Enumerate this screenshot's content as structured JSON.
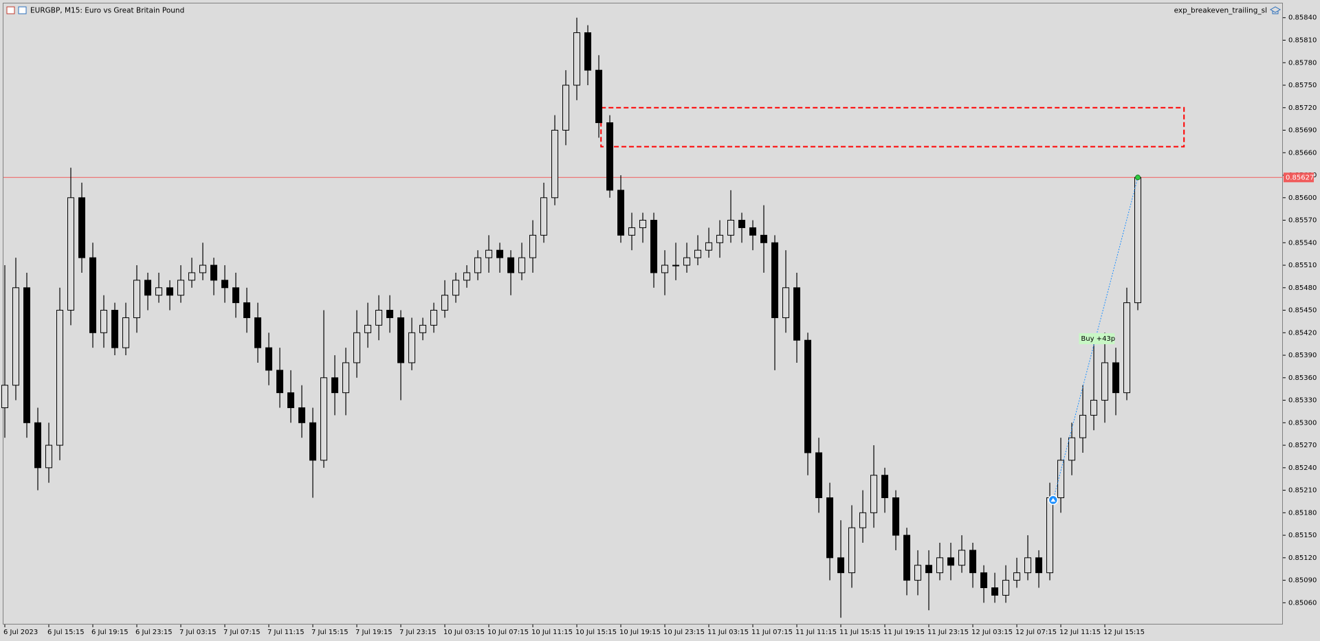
{
  "chart_data": {
    "type": "candlestick",
    "title": "EURGBP, M15:  Euro vs Great Britain Pound",
    "indicator": "exp_breakeven_trailing_sl",
    "ylim": [
      0.85031,
      0.85859
    ],
    "yticks": [
      {
        "value": 0.8506,
        "label": "0.85060"
      },
      {
        "value": 0.8509,
        "label": "0.85090"
      },
      {
        "value": 0.8512,
        "label": "0.85120"
      },
      {
        "value": 0.8515,
        "label": "0.85150"
      },
      {
        "value": 0.8518,
        "label": "0.85180"
      },
      {
        "value": 0.8521,
        "label": "0.85210"
      },
      {
        "value": 0.8524,
        "label": "0.85240"
      },
      {
        "value": 0.8527,
        "label": "0.85270"
      },
      {
        "value": 0.853,
        "label": "0.85300"
      },
      {
        "value": 0.8533,
        "label": "0.85330"
      },
      {
        "value": 0.8536,
        "label": "0.85360"
      },
      {
        "value": 0.8539,
        "label": "0.85390"
      },
      {
        "value": 0.8542,
        "label": "0.85420"
      },
      {
        "value": 0.8545,
        "label": "0.85450"
      },
      {
        "value": 0.8548,
        "label": "0.85480"
      },
      {
        "value": 0.8551,
        "label": "0.85510"
      },
      {
        "value": 0.8554,
        "label": "0.85540"
      },
      {
        "value": 0.8557,
        "label": "0.85570"
      },
      {
        "value": 0.856,
        "label": "0.85600"
      },
      {
        "value": 0.8563,
        "label": "0.85630"
      },
      {
        "value": 0.8566,
        "label": "0.85660"
      },
      {
        "value": 0.8569,
        "label": "0.85690"
      },
      {
        "value": 0.8572,
        "label": "0.85720"
      },
      {
        "value": 0.8575,
        "label": "0.85750"
      },
      {
        "value": 0.8578,
        "label": "0.85780"
      },
      {
        "value": 0.8581,
        "label": "0.85810"
      },
      {
        "value": 0.8584,
        "label": "0.85840"
      }
    ],
    "xticks": [
      {
        "value": 0,
        "label": "6 Jul 2023"
      },
      {
        "value": 4,
        "label": "6 Jul 15:15"
      },
      {
        "value": 8,
        "label": "6 Jul 19:15"
      },
      {
        "value": 12,
        "label": "6 Jul 23:15"
      },
      {
        "value": 16,
        "label": "7 Jul 03:15"
      },
      {
        "value": 20,
        "label": "7 Jul 07:15"
      },
      {
        "value": 24,
        "label": "7 Jul 11:15"
      },
      {
        "value": 28,
        "label": "7 Jul 15:15"
      },
      {
        "value": 32,
        "label": "7 Jul 19:15"
      },
      {
        "value": 36,
        "label": "7 Jul 23:15"
      },
      {
        "value": 40,
        "label": "10 Jul 03:15"
      },
      {
        "value": 44,
        "label": "10 Jul 07:15"
      },
      {
        "value": 48,
        "label": "10 Jul 11:15"
      },
      {
        "value": 52,
        "label": "10 Jul 15:15"
      },
      {
        "value": 56,
        "label": "10 Jul 19:15"
      },
      {
        "value": 60,
        "label": "10 Jul 23:15"
      },
      {
        "value": 64,
        "label": "11 Jul 03:15"
      },
      {
        "value": 68,
        "label": "11 Jul 07:15"
      },
      {
        "value": 72,
        "label": "11 Jul 11:15"
      },
      {
        "value": 76,
        "label": "11 Jul 15:15"
      },
      {
        "value": 80,
        "label": "11 Jul 19:15"
      },
      {
        "value": 84,
        "label": "11 Jul 23:15"
      },
      {
        "value": 88,
        "label": "12 Jul 03:15"
      },
      {
        "value": 92,
        "label": "12 Jul 07:15"
      },
      {
        "value": 96,
        "label": "12 Jul 11:15"
      },
      {
        "value": 100,
        "label": "12 Jul 15:15"
      }
    ],
    "candle_color": "#000000",
    "ohlc": [
      [
        0.8532,
        0.8551,
        0.8528,
        0.8535
      ],
      [
        0.8535,
        0.8552,
        0.8533,
        0.8548
      ],
      [
        0.8548,
        0.855,
        0.8528,
        0.853
      ],
      [
        0.853,
        0.8532,
        0.8521,
        0.8524
      ],
      [
        0.8524,
        0.853,
        0.8522,
        0.8527
      ],
      [
        0.8527,
        0.8548,
        0.8525,
        0.8545
      ],
      [
        0.8545,
        0.8564,
        0.8543,
        0.856
      ],
      [
        0.856,
        0.8562,
        0.855,
        0.8552
      ],
      [
        0.8552,
        0.8554,
        0.854,
        0.8542
      ],
      [
        0.8542,
        0.8547,
        0.854,
        0.8545
      ],
      [
        0.8545,
        0.8546,
        0.8539,
        0.854
      ],
      [
        0.854,
        0.8546,
        0.8539,
        0.8544
      ],
      [
        0.8544,
        0.8551,
        0.8542,
        0.8549
      ],
      [
        0.8549,
        0.855,
        0.8545,
        0.8547
      ],
      [
        0.8547,
        0.855,
        0.8546,
        0.8548
      ],
      [
        0.8548,
        0.8549,
        0.8545,
        0.8547
      ],
      [
        0.8547,
        0.8551,
        0.8546,
        0.8549
      ],
      [
        0.8549,
        0.8552,
        0.8548,
        0.855
      ],
      [
        0.855,
        0.8554,
        0.8549,
        0.8551
      ],
      [
        0.8551,
        0.8552,
        0.8547,
        0.8549
      ],
      [
        0.8549,
        0.8551,
        0.8546,
        0.8548
      ],
      [
        0.8548,
        0.855,
        0.8544,
        0.8546
      ],
      [
        0.8546,
        0.8548,
        0.8542,
        0.8544
      ],
      [
        0.8544,
        0.8546,
        0.8538,
        0.854
      ],
      [
        0.854,
        0.8542,
        0.8535,
        0.8537
      ],
      [
        0.8537,
        0.854,
        0.8532,
        0.8534
      ],
      [
        0.8534,
        0.8537,
        0.853,
        0.8532
      ],
      [
        0.8532,
        0.8535,
        0.8528,
        0.853
      ],
      [
        0.853,
        0.8532,
        0.852,
        0.8525
      ],
      [
        0.8525,
        0.8545,
        0.8524,
        0.8536
      ],
      [
        0.8536,
        0.8539,
        0.8531,
        0.8534
      ],
      [
        0.8534,
        0.854,
        0.8531,
        0.8538
      ],
      [
        0.8538,
        0.8545,
        0.8536,
        0.8542
      ],
      [
        0.8542,
        0.8546,
        0.854,
        0.8543
      ],
      [
        0.8543,
        0.8547,
        0.8541,
        0.8545
      ],
      [
        0.8545,
        0.8547,
        0.8542,
        0.8544
      ],
      [
        0.8544,
        0.8545,
        0.8533,
        0.8538
      ],
      [
        0.8538,
        0.8544,
        0.8537,
        0.8542
      ],
      [
        0.8542,
        0.8544,
        0.8541,
        0.8543
      ],
      [
        0.8543,
        0.8546,
        0.8542,
        0.8545
      ],
      [
        0.8545,
        0.8549,
        0.8544,
        0.8547
      ],
      [
        0.8547,
        0.855,
        0.8546,
        0.8549
      ],
      [
        0.8549,
        0.8551,
        0.8548,
        0.855
      ],
      [
        0.855,
        0.8553,
        0.8549,
        0.8552
      ],
      [
        0.8552,
        0.8555,
        0.855,
        0.8553
      ],
      [
        0.8553,
        0.8554,
        0.855,
        0.8552
      ],
      [
        0.8552,
        0.8553,
        0.8547,
        0.855
      ],
      [
        0.855,
        0.8554,
        0.8549,
        0.8552
      ],
      [
        0.8552,
        0.8557,
        0.855,
        0.8555
      ],
      [
        0.8555,
        0.8562,
        0.8554,
        0.856
      ],
      [
        0.856,
        0.8571,
        0.8559,
        0.8569
      ],
      [
        0.8569,
        0.8577,
        0.8567,
        0.8575
      ],
      [
        0.8575,
        0.8584,
        0.8573,
        0.8582
      ],
      [
        0.8582,
        0.8583,
        0.8575,
        0.8577
      ],
      [
        0.8577,
        0.8579,
        0.8568,
        0.857
      ],
      [
        0.857,
        0.8571,
        0.856,
        0.8561
      ],
      [
        0.8561,
        0.8563,
        0.8554,
        0.8555
      ],
      [
        0.8555,
        0.8558,
        0.8553,
        0.8556
      ],
      [
        0.8556,
        0.8558,
        0.8554,
        0.8557
      ],
      [
        0.8557,
        0.8558,
        0.8548,
        0.855
      ],
      [
        0.855,
        0.8553,
        0.8547,
        0.8551
      ],
      [
        0.8551,
        0.8554,
        0.8549,
        0.8551
      ],
      [
        0.8551,
        0.8554,
        0.855,
        0.8552
      ],
      [
        0.8552,
        0.8555,
        0.8551,
        0.8553
      ],
      [
        0.8553,
        0.8556,
        0.8552,
        0.8554
      ],
      [
        0.8554,
        0.8557,
        0.8552,
        0.8555
      ],
      [
        0.8555,
        0.8561,
        0.8554,
        0.8557
      ],
      [
        0.8557,
        0.8558,
        0.8554,
        0.8556
      ],
      [
        0.8556,
        0.8557,
        0.8553,
        0.8555
      ],
      [
        0.8555,
        0.8559,
        0.855,
        0.8554
      ],
      [
        0.8554,
        0.8555,
        0.8537,
        0.8544
      ],
      [
        0.8544,
        0.8553,
        0.8542,
        0.8548
      ],
      [
        0.8548,
        0.855,
        0.8538,
        0.8541
      ],
      [
        0.8541,
        0.8542,
        0.8523,
        0.8526
      ],
      [
        0.8526,
        0.8528,
        0.8518,
        0.852
      ],
      [
        0.852,
        0.8522,
        0.8509,
        0.8512
      ],
      [
        0.8512,
        0.8517,
        0.8504,
        0.851
      ],
      [
        0.851,
        0.8519,
        0.8508,
        0.8516
      ],
      [
        0.8516,
        0.8521,
        0.8514,
        0.8518
      ],
      [
        0.8518,
        0.8527,
        0.8516,
        0.8523
      ],
      [
        0.8523,
        0.8524,
        0.8518,
        0.852
      ],
      [
        0.852,
        0.8521,
        0.8513,
        0.8515
      ],
      [
        0.8515,
        0.8516,
        0.8507,
        0.8509
      ],
      [
        0.8509,
        0.8513,
        0.8507,
        0.8511
      ],
      [
        0.8511,
        0.8513,
        0.8505,
        0.851
      ],
      [
        0.851,
        0.8514,
        0.8509,
        0.8512
      ],
      [
        0.8512,
        0.8514,
        0.8509,
        0.8511
      ],
      [
        0.8511,
        0.8515,
        0.851,
        0.8513
      ],
      [
        0.8513,
        0.8514,
        0.8508,
        0.851
      ],
      [
        0.851,
        0.8511,
        0.8506,
        0.8508
      ],
      [
        0.8508,
        0.851,
        0.8506,
        0.8507
      ],
      [
        0.8507,
        0.8511,
        0.8506,
        0.8509
      ],
      [
        0.8509,
        0.8512,
        0.8508,
        0.851
      ],
      [
        0.851,
        0.8515,
        0.8509,
        0.8512
      ],
      [
        0.8512,
        0.8513,
        0.8508,
        0.851
      ],
      [
        0.851,
        0.8522,
        0.8509,
        0.852
      ],
      [
        0.852,
        0.8528,
        0.8518,
        0.8525
      ],
      [
        0.8525,
        0.853,
        0.8523,
        0.8528
      ],
      [
        0.8528,
        0.8535,
        0.8526,
        0.8531
      ],
      [
        0.8531,
        0.8541,
        0.8529,
        0.8533
      ],
      [
        0.8533,
        0.8542,
        0.853,
        0.8538
      ],
      [
        0.8538,
        0.854,
        0.8531,
        0.8534
      ],
      [
        0.8534,
        0.8548,
        0.8533,
        0.8546
      ],
      [
        0.8546,
        0.85627,
        0.8545,
        0.85627
      ]
    ],
    "current_price": 0.85627,
    "current_price_color": "#f05b5b",
    "zone": {
      "top": 0.8572,
      "bottom": 0.85668,
      "start": 54.2,
      "end": 107.2,
      "color": "#ff0000"
    },
    "trade": {
      "label": "Buy +43p",
      "entry_index": 95.3,
      "entry_price": 0.85197,
      "exit_index": 103,
      "exit_price": 0.85627,
      "color": "#1e90ff"
    }
  }
}
